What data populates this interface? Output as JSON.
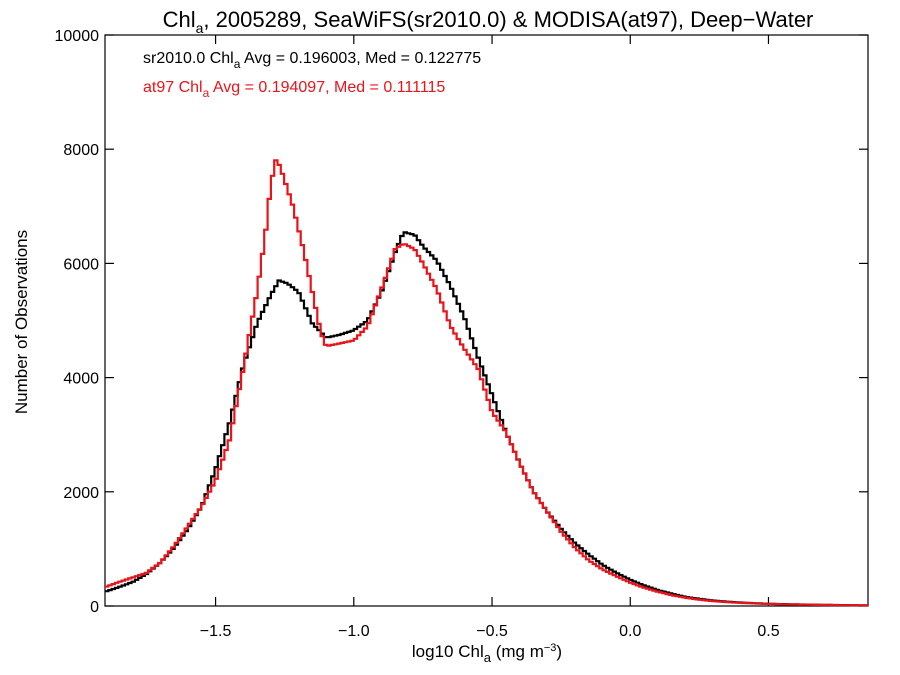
{
  "chart_data": {
    "type": "line",
    "step": true,
    "title": {
      "prefix": "Chl",
      "sub": "a",
      "rest": ", 2005289, SeaWiFS(sr2010.0) & MODISA(at97), Deep−Water"
    },
    "xlabel": {
      "prefix": "log10 Chl",
      "sub": "a",
      "rest": " (mg m",
      "sup": "−3",
      "close": ")"
    },
    "ylabel": "Number of Observations",
    "xlim": [
      -1.9,
      0.86
    ],
    "ylim": [
      0,
      10000
    ],
    "xticks": [
      {
        "value": -1.5,
        "label": "−1.5"
      },
      {
        "value": -1.0,
        "label": "−1.0"
      },
      {
        "value": -0.5,
        "label": "−0.5"
      },
      {
        "value": 0.0,
        "label": "0.0"
      },
      {
        "value": 0.5,
        "label": "0.5"
      }
    ],
    "yticks": [
      {
        "value": 0,
        "label": "0"
      },
      {
        "value": 2000,
        "label": "2000"
      },
      {
        "value": 4000,
        "label": "4000"
      },
      {
        "value": 6000,
        "label": "6000"
      },
      {
        "value": 8000,
        "label": "8000"
      },
      {
        "value": 10000,
        "label": "10000"
      }
    ],
    "annotations": [
      {
        "prefix": "sr2010.0 Chl",
        "sub": "a",
        "rest": " Avg = 0.196003, Med = 0.122775",
        "color": "#000000"
      },
      {
        "prefix": "at97 Chl",
        "sub": "a",
        "rest": " Avg = 0.194097, Med = 0.111115",
        "color": "#e8141b"
      }
    ],
    "series": [
      {
        "color": "#000000",
        "points": [
          [
            -1.9,
            250
          ],
          [
            -1.85,
            330
          ],
          [
            -1.8,
            420
          ],
          [
            -1.75,
            560
          ],
          [
            -1.7,
            760
          ],
          [
            -1.65,
            1020
          ],
          [
            -1.6,
            1350
          ],
          [
            -1.55,
            1750
          ],
          [
            -1.5,
            2400
          ],
          [
            -1.45,
            3200
          ],
          [
            -1.4,
            4200
          ],
          [
            -1.35,
            4950
          ],
          [
            -1.3,
            5450
          ],
          [
            -1.27,
            5700
          ],
          [
            -1.24,
            5650
          ],
          [
            -1.2,
            5500
          ],
          [
            -1.15,
            4950
          ],
          [
            -1.1,
            4700
          ],
          [
            -1.05,
            4750
          ],
          [
            -1.0,
            4830
          ],
          [
            -0.95,
            5000
          ],
          [
            -0.9,
            5500
          ],
          [
            -0.85,
            6200
          ],
          [
            -0.82,
            6550
          ],
          [
            -0.78,
            6500
          ],
          [
            -0.75,
            6300
          ],
          [
            -0.7,
            6050
          ],
          [
            -0.65,
            5600
          ],
          [
            -0.6,
            5050
          ],
          [
            -0.55,
            4350
          ],
          [
            -0.5,
            3700
          ],
          [
            -0.45,
            3050
          ],
          [
            -0.4,
            2500
          ],
          [
            -0.35,
            2000
          ],
          [
            -0.3,
            1650
          ],
          [
            -0.25,
            1350
          ],
          [
            -0.2,
            1100
          ],
          [
            -0.15,
            900
          ],
          [
            -0.1,
            720
          ],
          [
            -0.05,
            580
          ],
          [
            0.0,
            460
          ],
          [
            0.05,
            360
          ],
          [
            0.1,
            280
          ],
          [
            0.15,
            215
          ],
          [
            0.2,
            160
          ],
          [
            0.25,
            125
          ],
          [
            0.3,
            95
          ],
          [
            0.35,
            75
          ],
          [
            0.4,
            60
          ],
          [
            0.45,
            48
          ],
          [
            0.5,
            40
          ],
          [
            0.55,
            33
          ],
          [
            0.6,
            28
          ],
          [
            0.65,
            24
          ],
          [
            0.7,
            20
          ],
          [
            0.75,
            17
          ],
          [
            0.8,
            14
          ],
          [
            0.86,
            12
          ]
        ]
      },
      {
        "color": "#e8141b",
        "points": [
          [
            -1.9,
            330
          ],
          [
            -1.85,
            420
          ],
          [
            -1.8,
            500
          ],
          [
            -1.75,
            580
          ],
          [
            -1.7,
            760
          ],
          [
            -1.65,
            1050
          ],
          [
            -1.6,
            1400
          ],
          [
            -1.55,
            1750
          ],
          [
            -1.5,
            2200
          ],
          [
            -1.45,
            2900
          ],
          [
            -1.4,
            4150
          ],
          [
            -1.35,
            5500
          ],
          [
            -1.32,
            6500
          ],
          [
            -1.3,
            7400
          ],
          [
            -1.28,
            7850
          ],
          [
            -1.26,
            7600
          ],
          [
            -1.22,
            7000
          ],
          [
            -1.18,
            6200
          ],
          [
            -1.15,
            5500
          ],
          [
            -1.12,
            4800
          ],
          [
            -1.1,
            4550
          ],
          [
            -1.05,
            4600
          ],
          [
            -1.0,
            4650
          ],
          [
            -0.95,
            4900
          ],
          [
            -0.9,
            5550
          ],
          [
            -0.85,
            6250
          ],
          [
            -0.82,
            6350
          ],
          [
            -0.78,
            6250
          ],
          [
            -0.75,
            6000
          ],
          [
            -0.7,
            5550
          ],
          [
            -0.65,
            4900
          ],
          [
            -0.6,
            4500
          ],
          [
            -0.55,
            4150
          ],
          [
            -0.5,
            3400
          ],
          [
            -0.45,
            3050
          ],
          [
            -0.4,
            2500
          ],
          [
            -0.35,
            2000
          ],
          [
            -0.3,
            1650
          ],
          [
            -0.25,
            1300
          ],
          [
            -0.2,
            1020
          ],
          [
            -0.15,
            800
          ],
          [
            -0.1,
            640
          ],
          [
            -0.05,
            520
          ],
          [
            0.0,
            410
          ],
          [
            0.05,
            320
          ],
          [
            0.1,
            250
          ],
          [
            0.15,
            190
          ],
          [
            0.2,
            145
          ],
          [
            0.25,
            110
          ],
          [
            0.3,
            85
          ],
          [
            0.35,
            68
          ],
          [
            0.4,
            55
          ],
          [
            0.45,
            45
          ],
          [
            0.5,
            38
          ],
          [
            0.55,
            31
          ],
          [
            0.6,
            26
          ],
          [
            0.65,
            22
          ],
          [
            0.7,
            18
          ],
          [
            0.75,
            15
          ],
          [
            0.8,
            13
          ],
          [
            0.86,
            11
          ]
        ]
      }
    ]
  }
}
